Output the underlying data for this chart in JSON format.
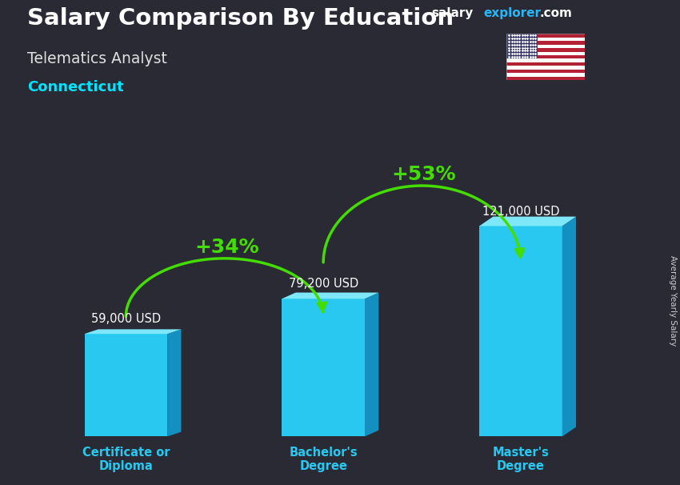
{
  "title": "Salary Comparison By Education",
  "subtitle": "Telematics Analyst",
  "location": "Connecticut",
  "categories": [
    "Certificate or\nDiploma",
    "Bachelor's\nDegree",
    "Master's\nDegree"
  ],
  "values": [
    59000,
    79200,
    121000
  ],
  "value_labels": [
    "59,000 USD",
    "79,200 USD",
    "121,000 USD"
  ],
  "pct_labels": [
    "+34%",
    "+53%"
  ],
  "color_front": "#29c8f0",
  "color_top": "#7ee8f8",
  "color_side": "#1490c0",
  "bg_color": "#2a2a35",
  "title_color": "#ffffff",
  "subtitle_color": "#e0e0e0",
  "location_color": "#00e5ff",
  "value_label_color": "#ffffff",
  "pct_color": "#aaff00",
  "arrow_color": "#44dd00",
  "xlabel_color": "#29c8f0",
  "ylabel_text": "Average Yearly Salary",
  "brand_salary_color": "#ffffff",
  "brand_explorer_color": "#29b6f6",
  "brand_dotcom_color": "#ffffff",
  "ylim": [
    0,
    145000
  ],
  "bar_width": 0.42,
  "x_positions": [
    0.5,
    1.5,
    2.5
  ],
  "xlim": [
    0,
    3.1
  ]
}
